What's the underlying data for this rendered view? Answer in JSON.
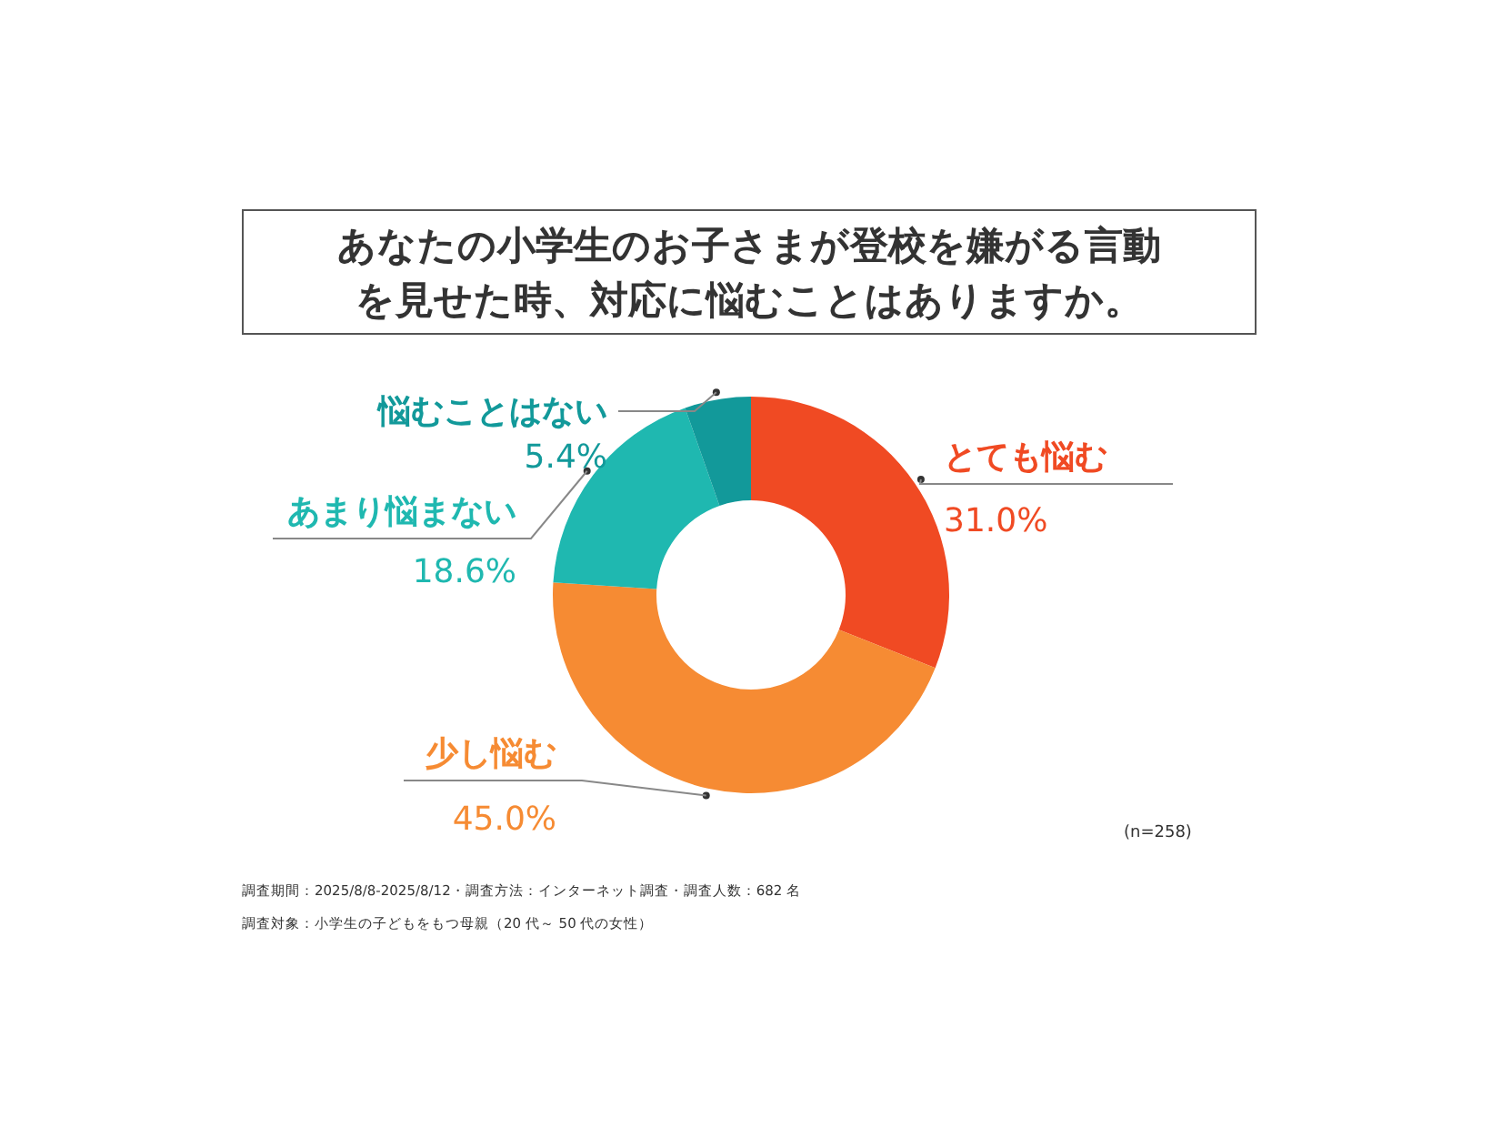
{
  "chart_data": {
    "type": "donut",
    "title": "あなたの小学生のお子さまが登校を嫌がる言動を見せた時、対応に悩むことはありますか。",
    "categories": [
      "とても悩む",
      "少し悩む",
      "あまり悩まない",
      "悩むことはない"
    ],
    "values": [
      31.0,
      45.0,
      18.6,
      5.4
    ],
    "value_labels": [
      "31.0%",
      "45.0%",
      "18.6%",
      "5.4%"
    ],
    "colors": [
      "#f04a23",
      "#f68b33",
      "#1fb8b0",
      "#12999a"
    ],
    "annotations": [
      "(n=258)",
      "調査期間：2025/8/8-2025/8/12・調査方法：インターネット調査・調査人数：682 名",
      "調査対象：小学生の子どもをもつ母親（20 代～ 50 代の女性）"
    ]
  }
}
